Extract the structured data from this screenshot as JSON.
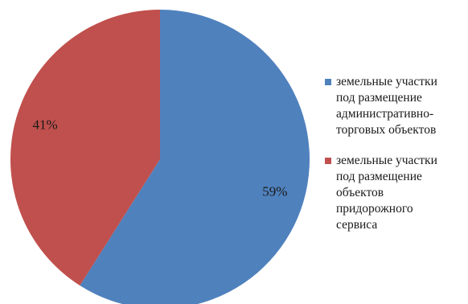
{
  "chart_data": {
    "type": "pie",
    "title": "",
    "slices": [
      {
        "name": "земельные участки\nпод размещение\nадминистративно-\nторговых объектов",
        "value": 59,
        "label": "59%",
        "color": "#4f81bd"
      },
      {
        "name": "земельные участки\nпод размещение\nобъектов\nпридорожного\nсервиса",
        "value": 41,
        "label": "41%",
        "color": "#c0504d"
      }
    ],
    "start_angle_deg": 0,
    "direction": "clockwise",
    "legend_position": "right"
  }
}
